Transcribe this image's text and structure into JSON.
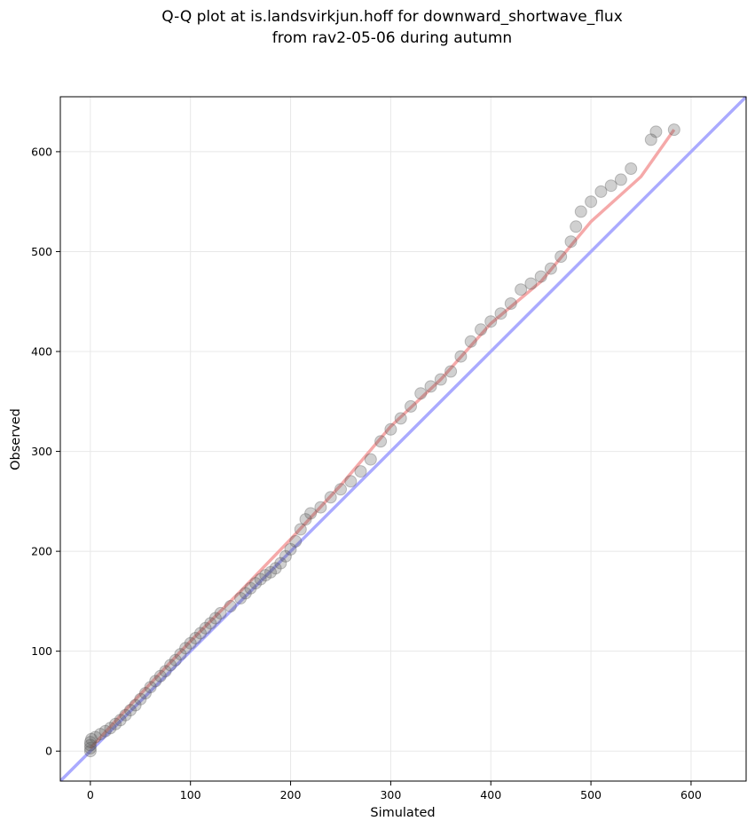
{
  "chart_data": {
    "type": "scatter",
    "title_lines": [
      "Q-Q plot at is.landsvirkjun.hoff for downward_shortwave_flux",
      "from rav2-05-06 during autumn"
    ],
    "xlabel": "Simulated",
    "ylabel": "Observed",
    "xlim": [
      -30,
      655
    ],
    "ylim": [
      -30,
      655
    ],
    "xticks": [
      0,
      100,
      200,
      300,
      400,
      500,
      600
    ],
    "yticks": [
      0,
      100,
      200,
      300,
      400,
      500,
      600
    ],
    "grid": true,
    "colors": {
      "points": "#555555",
      "identity_line": "#aaaaff",
      "fit_line": "#f4a0a0",
      "grid": "#e8e8e8"
    },
    "identity_line": {
      "from": [
        -30,
        -30
      ],
      "to": [
        655,
        655
      ]
    },
    "fit_line": [
      [
        0,
        3
      ],
      [
        50,
        57
      ],
      [
        100,
        110
      ],
      [
        150,
        160
      ],
      [
        200,
        212
      ],
      [
        250,
        266
      ],
      [
        300,
        325
      ],
      [
        350,
        372
      ],
      [
        400,
        428
      ],
      [
        450,
        470
      ],
      [
        500,
        530
      ],
      [
        550,
        575
      ],
      [
        583,
        622
      ]
    ],
    "series": [
      {
        "points": [
          [
            0,
            0
          ],
          [
            0,
            3
          ],
          [
            0,
            6
          ],
          [
            0,
            9
          ],
          [
            1,
            12
          ],
          [
            5,
            14
          ],
          [
            10,
            17
          ],
          [
            15,
            20
          ],
          [
            20,
            23
          ],
          [
            25,
            27
          ],
          [
            30,
            31
          ],
          [
            35,
            36
          ],
          [
            40,
            41
          ],
          [
            45,
            46
          ],
          [
            50,
            52
          ],
          [
            55,
            58
          ],
          [
            60,
            64
          ],
          [
            65,
            70
          ],
          [
            70,
            75
          ],
          [
            75,
            80
          ],
          [
            80,
            86
          ],
          [
            85,
            91
          ],
          [
            90,
            97
          ],
          [
            95,
            103
          ],
          [
            100,
            108
          ],
          [
            105,
            113
          ],
          [
            110,
            118
          ],
          [
            115,
            123
          ],
          [
            120,
            128
          ],
          [
            125,
            133
          ],
          [
            130,
            138
          ],
          [
            140,
            145
          ],
          [
            150,
            153
          ],
          [
            155,
            158
          ],
          [
            160,
            163
          ],
          [
            165,
            168
          ],
          [
            170,
            172
          ],
          [
            175,
            176
          ],
          [
            180,
            179
          ],
          [
            185,
            183
          ],
          [
            190,
            188
          ],
          [
            195,
            195
          ],
          [
            200,
            202
          ],
          [
            205,
            210
          ],
          [
            210,
            222
          ],
          [
            215,
            232
          ],
          [
            220,
            238
          ],
          [
            230,
            244
          ],
          [
            240,
            254
          ],
          [
            250,
            262
          ],
          [
            260,
            270
          ],
          [
            270,
            280
          ],
          [
            280,
            292
          ],
          [
            290,
            310
          ],
          [
            300,
            322
          ],
          [
            310,
            333
          ],
          [
            320,
            345
          ],
          [
            330,
            358
          ],
          [
            340,
            365
          ],
          [
            350,
            372
          ],
          [
            360,
            380
          ],
          [
            370,
            395
          ],
          [
            380,
            410
          ],
          [
            390,
            422
          ],
          [
            400,
            430
          ],
          [
            410,
            438
          ],
          [
            420,
            448
          ],
          [
            430,
            462
          ],
          [
            440,
            468
          ],
          [
            450,
            475
          ],
          [
            460,
            483
          ],
          [
            470,
            495
          ],
          [
            480,
            510
          ],
          [
            485,
            525
          ],
          [
            490,
            540
          ],
          [
            500,
            550
          ],
          [
            510,
            560
          ],
          [
            520,
            566
          ],
          [
            530,
            572
          ],
          [
            540,
            583
          ],
          [
            560,
            612
          ],
          [
            565,
            620
          ],
          [
            583,
            622
          ]
        ]
      }
    ]
  }
}
